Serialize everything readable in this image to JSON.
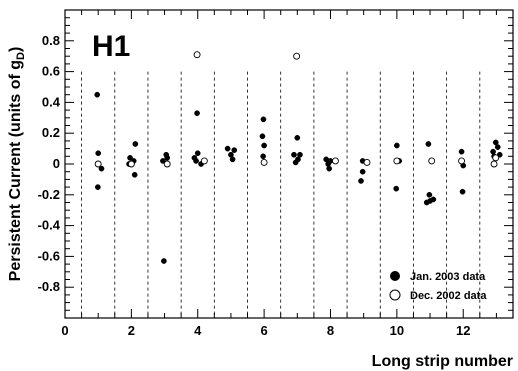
{
  "chart_data": {
    "type": "scatter",
    "title": "H1",
    "xlabel": "Long strip number",
    "ylabel_main": "Persistent Current (units of g",
    "ylabel_sub": "D",
    "ylabel_close": ")",
    "xlim": [
      0,
      13.5
    ],
    "ylim": [
      -1.0,
      1.0
    ],
    "x_ticks": [
      "0",
      "2",
      "4",
      "6",
      "8",
      "10",
      "12"
    ],
    "y_ticks": [
      "-0.8",
      "-0.6",
      "-0.4",
      "-0.2",
      "0",
      "0.2",
      "0.4",
      "0.6",
      "0.8"
    ],
    "legend_position": "bottom-right",
    "series": [
      {
        "name": "Jan. 2003 data",
        "marker": "filled-circle",
        "points": [
          [
            0.97,
            0.45
          ],
          [
            1.0,
            0.07
          ],
          [
            0.99,
            -0.15
          ],
          [
            1.1,
            -0.03
          ],
          [
            1.96,
            0.04
          ],
          [
            1.93,
            0.0
          ],
          [
            2.12,
            0.13
          ],
          [
            2.07,
            0.02
          ],
          [
            2.1,
            -0.07
          ],
          [
            2.95,
            0.02
          ],
          [
            3.05,
            0.06
          ],
          [
            3.08,
            0.04
          ],
          [
            2.98,
            -0.63
          ],
          [
            3.98,
            0.33
          ],
          [
            3.9,
            0.04
          ],
          [
            3.95,
            0.02
          ],
          [
            4.0,
            0.07
          ],
          [
            4.1,
            0.0
          ],
          [
            4.9,
            0.1
          ],
          [
            5.0,
            0.06
          ],
          [
            5.1,
            0.09
          ],
          [
            5.05,
            0.03
          ],
          [
            5.98,
            0.29
          ],
          [
            5.95,
            0.18
          ],
          [
            6.0,
            0.12
          ],
          [
            5.97,
            0.05
          ],
          [
            6.9,
            0.06
          ],
          [
            7.0,
            0.17
          ],
          [
            7.08,
            0.06
          ],
          [
            6.95,
            0.01
          ],
          [
            7.02,
            0.03
          ],
          [
            7.87,
            0.03
          ],
          [
            7.93,
            0.0
          ],
          [
            7.96,
            -0.03
          ],
          [
            8.0,
            0.02
          ],
          [
            8.97,
            0.02
          ],
          [
            8.97,
            -0.05
          ],
          [
            8.92,
            -0.11
          ],
          [
            10.0,
            0.12
          ],
          [
            9.98,
            -0.16
          ],
          [
            10.07,
            0.02
          ],
          [
            10.95,
            0.13
          ],
          [
            10.98,
            -0.2
          ],
          [
            10.9,
            -0.25
          ],
          [
            11.0,
            -0.24
          ],
          [
            11.1,
            -0.23
          ],
          [
            11.95,
            0.08
          ],
          [
            12.0,
            -0.01
          ],
          [
            11.98,
            -0.18
          ],
          [
            12.9,
            0.08
          ],
          [
            12.98,
            0.14
          ],
          [
            13.04,
            0.11
          ],
          [
            13.1,
            0.06
          ],
          [
            12.93,
            0.05
          ]
        ]
      },
      {
        "name": "Dec. 2002 data",
        "marker": "open-circle",
        "points": [
          [
            1.0,
            0.0
          ],
          [
            2.0,
            0.0
          ],
          [
            3.08,
            0.0
          ],
          [
            3.98,
            0.71
          ],
          [
            4.2,
            0.02
          ],
          [
            6.0,
            0.01
          ],
          [
            6.98,
            0.7
          ],
          [
            8.15,
            0.02
          ],
          [
            9.1,
            0.01
          ],
          [
            10.0,
            0.02
          ],
          [
            11.05,
            0.02
          ],
          [
            11.95,
            0.02
          ],
          [
            12.98,
            0.04
          ],
          [
            12.93,
            0.0
          ]
        ]
      }
    ],
    "separators": [
      0.5,
      1.5,
      2.5,
      3.5,
      4.5,
      5.5,
      6.5,
      7.5,
      8.5,
      9.5,
      10.5,
      11.5,
      12.5
    ],
    "legend": {
      "jan_label": "Jan. 2003 data",
      "dec_label": "Dec. 2002 data"
    }
  }
}
